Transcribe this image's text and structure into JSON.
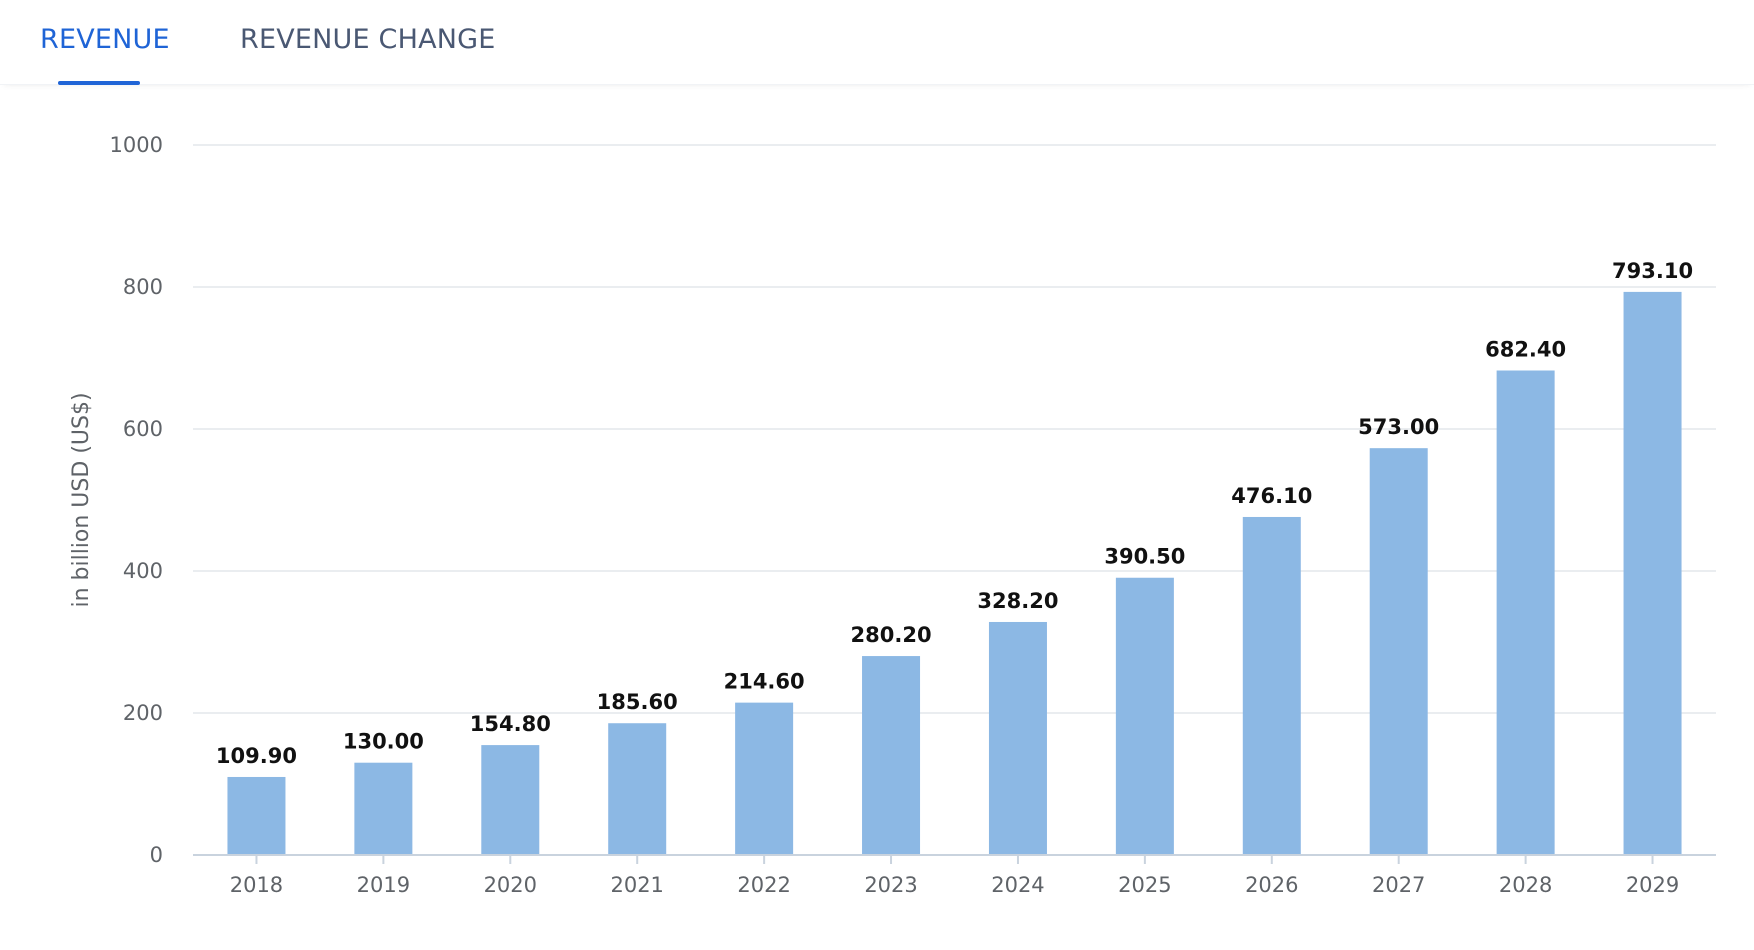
{
  "tabs": [
    {
      "label": "REVENUE",
      "active": true
    },
    {
      "label": "REVENUE CHANGE",
      "active": false
    }
  ],
  "colors": {
    "accent": "#1f64d6",
    "bar": "#8cb8e4",
    "grid": "#e4e7eb",
    "axis": "#c9d3de"
  },
  "chart_data": {
    "type": "bar",
    "categories": [
      "2018",
      "2019",
      "2020",
      "2021",
      "2022",
      "2023",
      "2024",
      "2025",
      "2026",
      "2027",
      "2028",
      "2029"
    ],
    "values": [
      109.9,
      130.0,
      154.8,
      185.6,
      214.6,
      280.2,
      328.2,
      390.5,
      476.1,
      573.0,
      682.4,
      793.1
    ],
    "value_labels": [
      "109.90",
      "130.00",
      "154.80",
      "185.60",
      "214.60",
      "280.20",
      "328.20",
      "390.50",
      "476.10",
      "573.00",
      "682.40",
      "793.10"
    ],
    "yticks": [
      "0",
      "200",
      "400",
      "600",
      "800",
      "1000"
    ],
    "ylim": [
      0,
      1000
    ],
    "ylabel": "in billion USD (US$)",
    "xlabel": "",
    "title": "",
    "grid": true,
    "legend": "none"
  }
}
